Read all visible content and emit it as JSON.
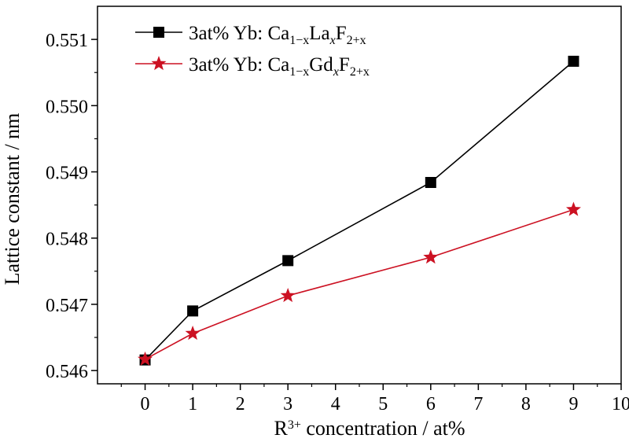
{
  "chart_data": {
    "type": "line",
    "xlabel_main": "R",
    "xlabel_sup": "3+",
    "xlabel_rest": " concentration / at%",
    "ylabel": "Lattice constant / nm",
    "xlim": [
      -1,
      10
    ],
    "ylim": [
      0.5458,
      0.5515
    ],
    "xticks": [
      0,
      1,
      2,
      3,
      4,
      5,
      6,
      7,
      8,
      9,
      10
    ],
    "xtick_labels": [
      "0",
      "1",
      "2",
      "3",
      "4",
      "5",
      "6",
      "7",
      "8",
      "9",
      "10"
    ],
    "yticks": [
      0.546,
      0.547,
      0.548,
      0.549,
      0.55,
      0.551
    ],
    "ytick_labels": [
      "0.546",
      "0.547",
      "0.548",
      "0.549",
      "0.550",
      "0.551"
    ],
    "grid": false,
    "legend_position": "top-left",
    "series": [
      {
        "name": "3at% Yb: Ca1−xLaxF2+x",
        "legend": {
          "prefix": "3at% Yb: Ca",
          "s1": "1−x",
          "m1": "La",
          "s2": "x",
          "m2": "F",
          "s3": "2+x"
        },
        "marker": "square",
        "color": "#000000",
        "x": [
          0,
          1,
          3,
          6,
          9
        ],
        "y": [
          0.54616,
          0.5469,
          0.54766,
          0.54884,
          0.55067
        ]
      },
      {
        "name": "3at% Yb: Ca1−xGdxF2+x",
        "legend": {
          "prefix": "3at% Yb: Ca",
          "s1": "1−x",
          "m1": "Gd",
          "s2": "x",
          "m2": "F",
          "s3": "2+x"
        },
        "marker": "star",
        "color": "#cc1122",
        "x": [
          0,
          1,
          3,
          6,
          9
        ],
        "y": [
          0.54617,
          0.54656,
          0.54713,
          0.54771,
          0.54843
        ]
      }
    ]
  }
}
